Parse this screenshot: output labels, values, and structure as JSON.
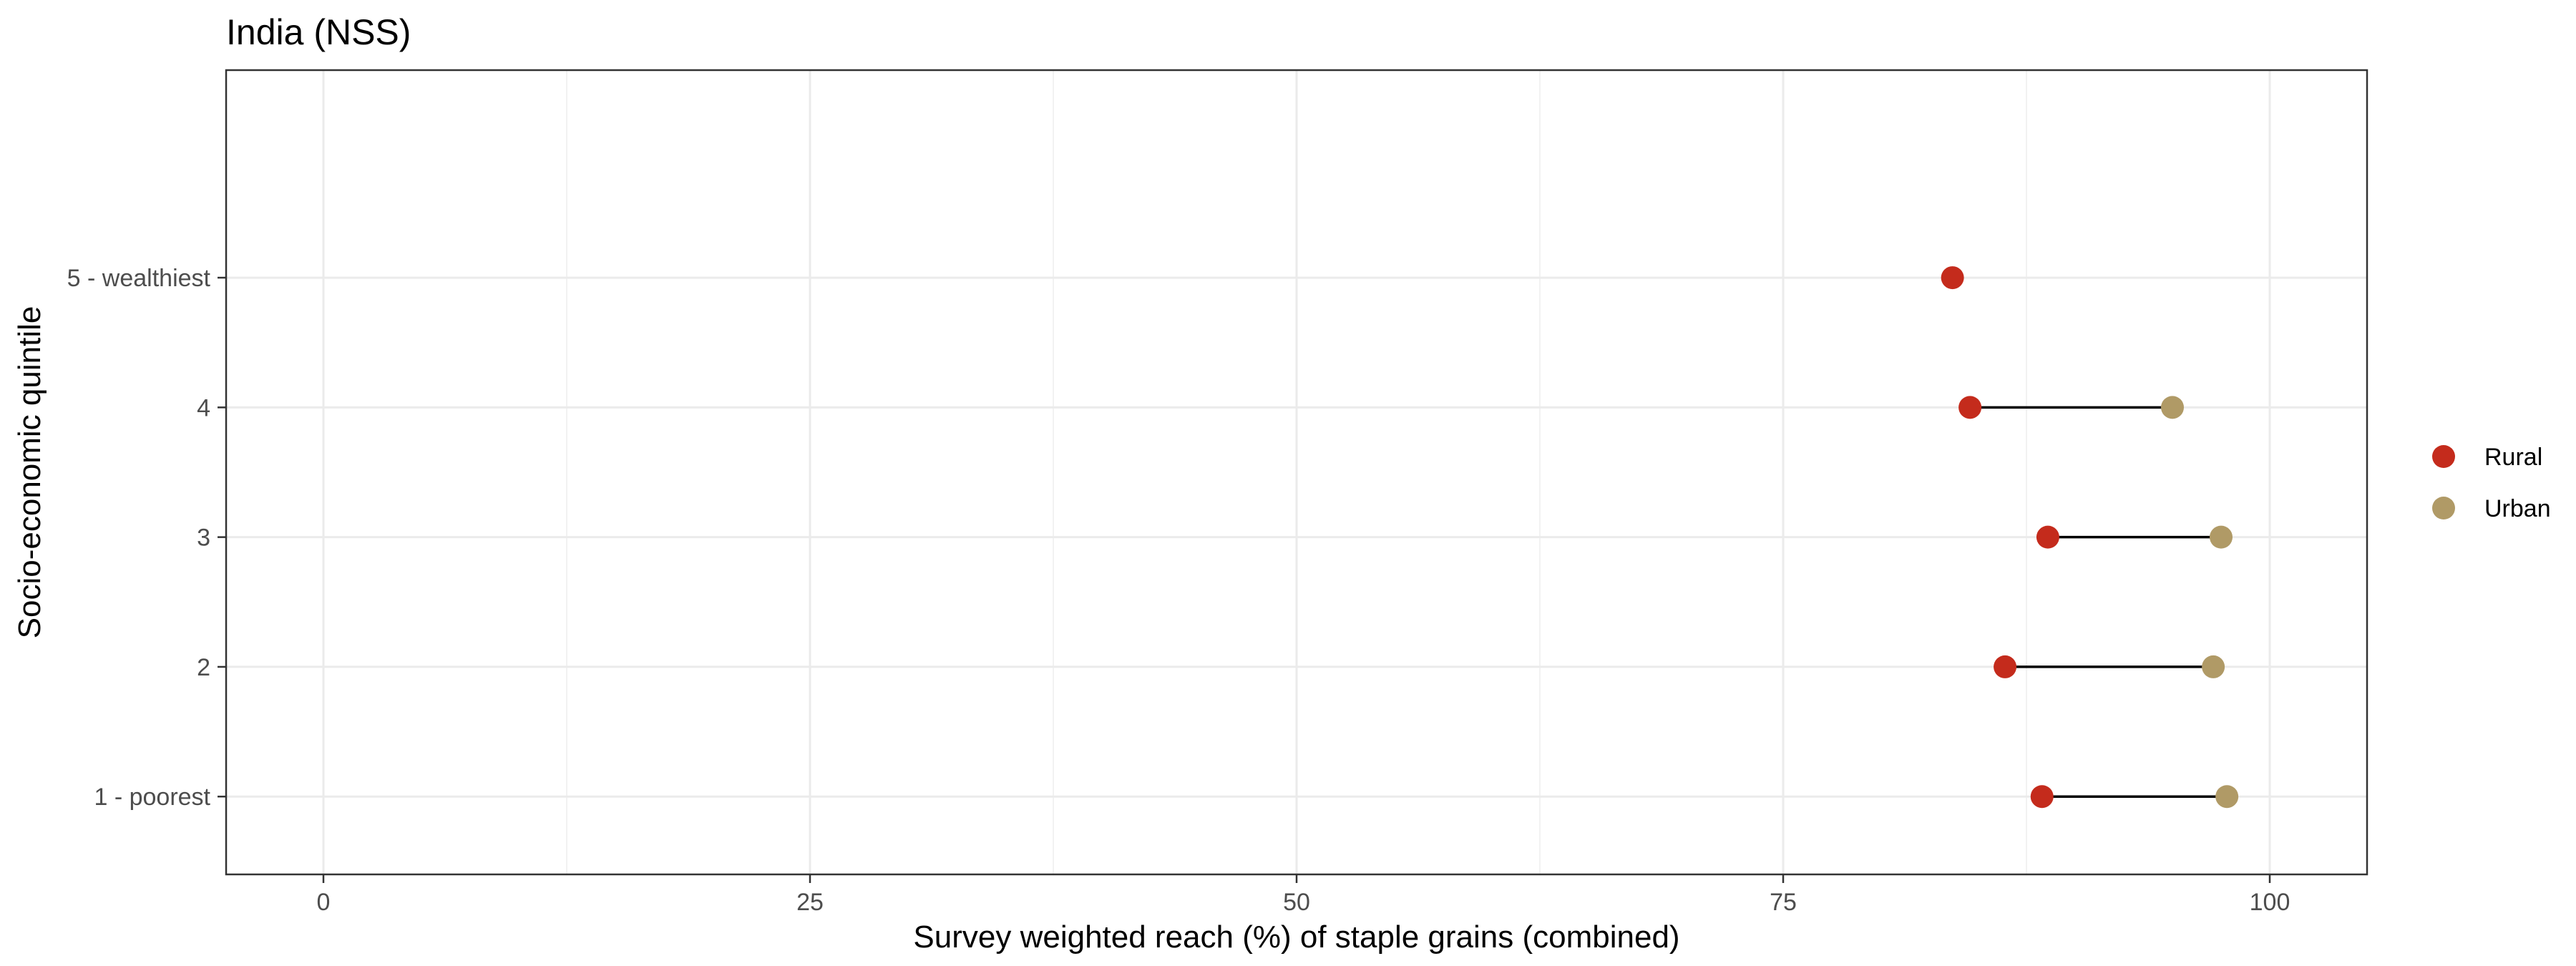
{
  "chart_data": {
    "type": "dumbbell",
    "title": "India (NSS)",
    "xlabel": "Survey weighted reach (%) of staple grains (combined)",
    "ylabel": "Socio-economic quintile",
    "xlim": [
      -5,
      105
    ],
    "x_ticks": [
      0,
      25,
      50,
      75,
      100
    ],
    "x_tick_labels": [
      "0",
      "25",
      "50",
      "75",
      "100"
    ],
    "categories": [
      "1 - poorest",
      "2",
      "3",
      "4",
      "5 - wealthiest"
    ],
    "series": [
      {
        "name": "Rural",
        "color": "#c42b1c",
        "values": [
          88.3,
          86.4,
          88.6,
          84.6,
          83.7
        ]
      },
      {
        "name": "Urban",
        "color": "#b09a66",
        "values": [
          97.8,
          97.1,
          97.5,
          95.0,
          null
        ]
      }
    ],
    "connector_color": "#000000",
    "grid": true,
    "legend_position": "right"
  }
}
